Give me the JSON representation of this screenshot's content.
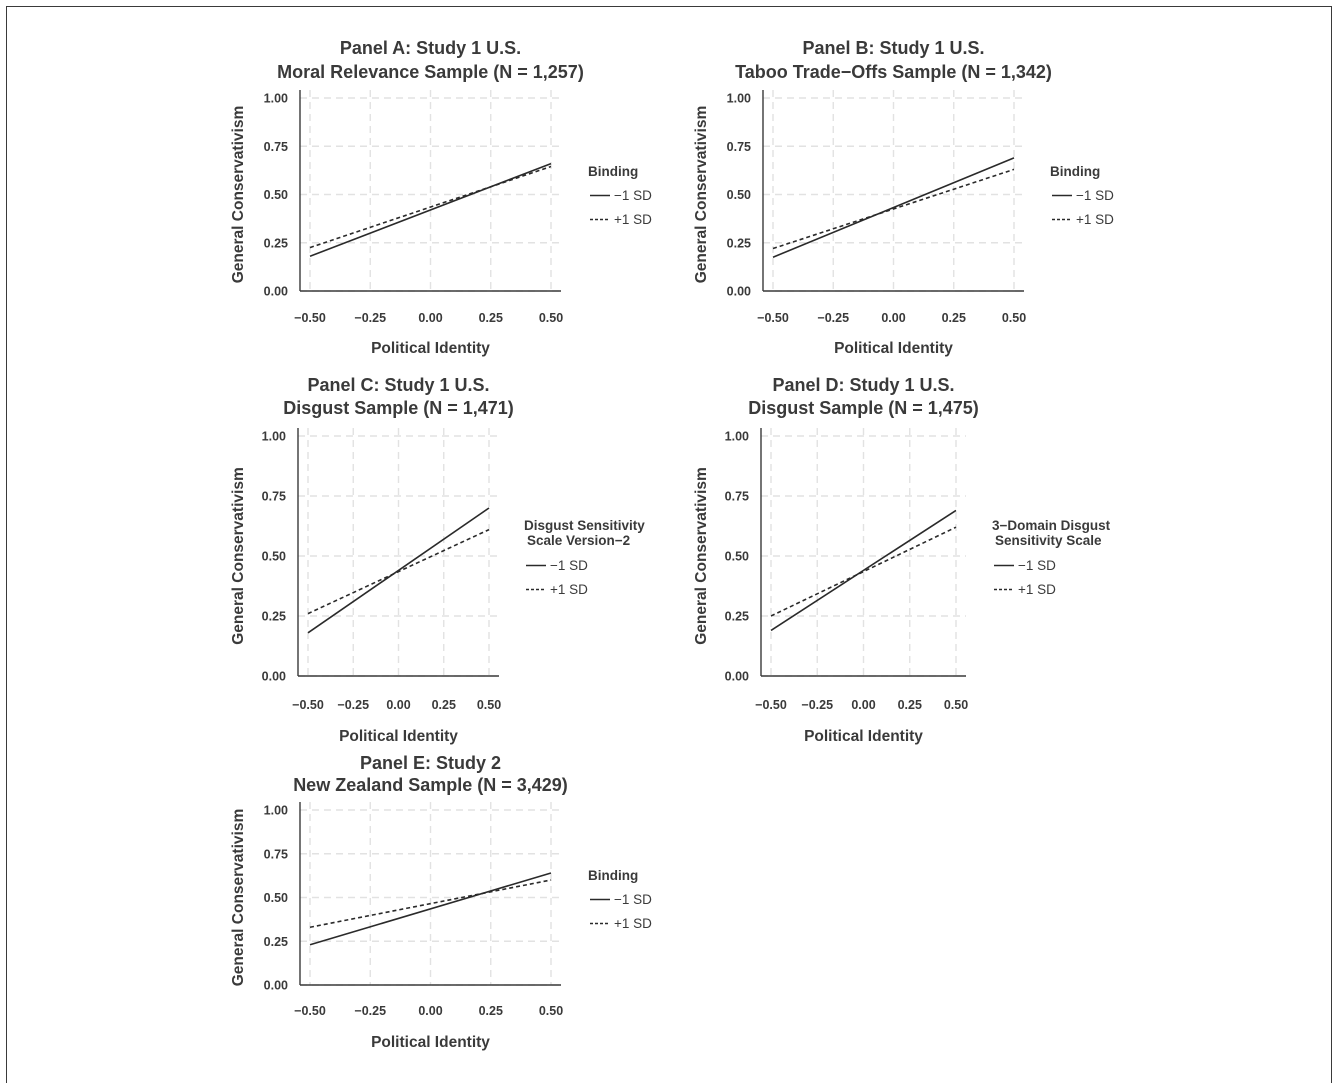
{
  "chart_data": [
    {
      "type": "line",
      "title_line1": "Panel A: Study 1 U.S.",
      "title_line2": "Moral Relevance Sample (N = 1,257)",
      "xlabel": "Political Identity",
      "ylabel": "General Conservativism",
      "xlim": [
        -0.5,
        0.5
      ],
      "ylim": [
        0,
        1
      ],
      "xticks": [
        "−0.50",
        "−0.25",
        "0.00",
        "0.25",
        "0.50"
      ],
      "yticks": [
        "0.00",
        "0.25",
        "0.50",
        "0.75",
        "1.00"
      ],
      "legend_title": [
        "Binding"
      ],
      "series": [
        {
          "name": "−1 SD",
          "style": "solid",
          "x": [
            -0.5,
            0.5
          ],
          "y": [
            0.18,
            0.66
          ]
        },
        {
          "name": "+1 SD",
          "style": "dashed",
          "x": [
            -0.5,
            0.5
          ],
          "y": [
            0.225,
            0.645
          ]
        }
      ]
    },
    {
      "type": "line",
      "title_line1": "Panel B: Study 1 U.S.",
      "title_line2": "Taboo Trade−Offs Sample (N = 1,342)",
      "xlabel": "Political Identity",
      "ylabel": "General Conservativism",
      "xlim": [
        -0.5,
        0.5
      ],
      "ylim": [
        0,
        1
      ],
      "xticks": [
        "−0.50",
        "−0.25",
        "0.00",
        "0.25",
        "0.50"
      ],
      "yticks": [
        "0.00",
        "0.25",
        "0.50",
        "0.75",
        "1.00"
      ],
      "legend_title": [
        "Binding"
      ],
      "series": [
        {
          "name": "−1 SD",
          "style": "solid",
          "x": [
            -0.5,
            0.5
          ],
          "y": [
            0.175,
            0.69
          ]
        },
        {
          "name": "+1 SD",
          "style": "dashed",
          "x": [
            -0.5,
            0.5
          ],
          "y": [
            0.22,
            0.63
          ]
        }
      ]
    },
    {
      "type": "line",
      "title_line1": "Panel C: Study 1 U.S.",
      "title_line2": "Disgust Sample (N = 1,471)",
      "xlabel": "Political Identity",
      "ylabel": "General Conservativism",
      "xlim": [
        -0.5,
        0.5
      ],
      "ylim": [
        0,
        1
      ],
      "xticks": [
        "−0.50",
        "−0.25",
        "0.00",
        "0.25",
        "0.50"
      ],
      "yticks": [
        "0.00",
        "0.25",
        "0.50",
        "0.75",
        "1.00"
      ],
      "legend_title": [
        "Disgust Sensitivity",
        "Scale Version−2"
      ],
      "series": [
        {
          "name": "−1 SD",
          "style": "solid",
          "x": [
            -0.5,
            0.5
          ],
          "y": [
            0.18,
            0.7
          ]
        },
        {
          "name": "+1 SD",
          "style": "dashed",
          "x": [
            -0.5,
            0.5
          ],
          "y": [
            0.26,
            0.61
          ]
        }
      ]
    },
    {
      "type": "line",
      "title_line1": "Panel D: Study 1 U.S.",
      "title_line2": "Disgust Sample (N = 1,475)",
      "xlabel": "Political Identity",
      "ylabel": "General Conservativism",
      "xlim": [
        -0.5,
        0.5
      ],
      "ylim": [
        0,
        1
      ],
      "xticks": [
        "−0.50",
        "−0.25",
        "0.00",
        "0.25",
        "0.50"
      ],
      "yticks": [
        "0.00",
        "0.25",
        "0.50",
        "0.75",
        "1.00"
      ],
      "legend_title": [
        "3−Domain Disgust",
        "Sensitivity Scale"
      ],
      "series": [
        {
          "name": "−1 SD",
          "style": "solid",
          "x": [
            -0.5,
            0.5
          ],
          "y": [
            0.19,
            0.69
          ]
        },
        {
          "name": "+1 SD",
          "style": "dashed",
          "x": [
            -0.5,
            0.5
          ],
          "y": [
            0.25,
            0.62
          ]
        }
      ]
    },
    {
      "type": "line",
      "title_line1": "Panel E: Study 2",
      "title_line2": "New Zealand Sample (N = 3,429)",
      "xlabel": "Political Identity",
      "ylabel": "General Conservativism",
      "xlim": [
        -0.5,
        0.5
      ],
      "ylim": [
        0,
        1
      ],
      "xticks": [
        "−0.50",
        "−0.25",
        "0.00",
        "0.25",
        "0.50"
      ],
      "yticks": [
        "0.00",
        "0.25",
        "0.50",
        "0.75",
        "1.00"
      ],
      "legend_title": [
        "Binding"
      ],
      "series": [
        {
          "name": "−1 SD",
          "style": "solid",
          "x": [
            -0.5,
            0.5
          ],
          "y": [
            0.23,
            0.64
          ]
        },
        {
          "name": "+1 SD",
          "style": "dashed",
          "x": [
            -0.5,
            0.5
          ],
          "y": [
            0.33,
            0.6
          ]
        }
      ]
    }
  ]
}
